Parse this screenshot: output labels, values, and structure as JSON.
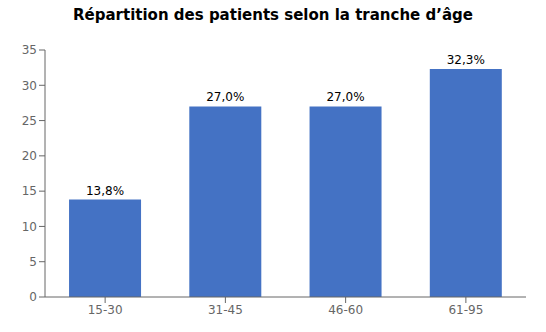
{
  "chart_data": {
    "type": "bar",
    "title": "Répartition des patients selon la tranche d’âge",
    "categories": [
      "15-30",
      "31-45",
      "46-60",
      "61-95"
    ],
    "values": [
      13.8,
      27.0,
      27.0,
      32.3
    ],
    "value_labels": [
      "13,8%",
      "27,0%",
      "27,0%",
      "32,3%"
    ],
    "data_labels": true,
    "color": "#4472C4",
    "ylim": [
      0,
      35
    ],
    "yticks": [
      0,
      5,
      10,
      15,
      20,
      25,
      30,
      35
    ],
    "grid": false
  }
}
